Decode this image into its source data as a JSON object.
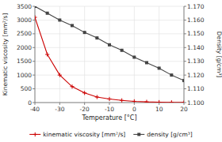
{
  "chart_data": {
    "type": "line",
    "x_label": "Temperature [°C]",
    "y_label": "Kinematic viscosity [mm²/s]",
    "y2_label": "Density [g/cm³]",
    "x": [
      -40,
      -35,
      -30,
      -25,
      -20,
      -15,
      -10,
      -5,
      0,
      5,
      10,
      15,
      20
    ],
    "series": [
      {
        "name": "kinematic viscosity [mm²/s]",
        "color": "#cc0000",
        "marker": "plus",
        "values": [
          3100,
          1750,
          1000,
          580,
          350,
          200,
          130,
          80,
          45,
          25,
          15,
          8,
          3
        ]
      },
      {
        "name": "density [g/cm³]",
        "color": "#444444",
        "marker": "square",
        "axis": "y2",
        "values": [
          1.17,
          1.165,
          1.16,
          1.156,
          1.151,
          1.147,
          1.142,
          1.138,
          1.133,
          1.129,
          1.125,
          1.12,
          1.116
        ]
      }
    ],
    "xlim": [
      -40,
      20
    ],
    "ylim": [
      0,
      3500
    ],
    "y2lim": [
      1.1,
      1.17
    ],
    "xticks": [
      -40,
      -30,
      -20,
      -10,
      0,
      10,
      20
    ],
    "yticks": [
      0,
      500,
      1000,
      1500,
      2000,
      2500,
      3000,
      3500
    ],
    "y2ticks": [
      {
        "value": 1.1,
        "label": "1.100"
      },
      {
        "value": 1.11,
        "label": "1.110"
      },
      {
        "value": 1.12,
        "label": "1.120"
      },
      {
        "value": 1.13,
        "label": "1.130"
      },
      {
        "value": 1.14,
        "label": "1.140"
      },
      {
        "value": 1.15,
        "label": "1.150"
      },
      {
        "value": 1.16,
        "label": "1.160"
      },
      {
        "value": 1.17,
        "label": "1.170"
      }
    ],
    "grid": true,
    "legend": "bottom"
  }
}
